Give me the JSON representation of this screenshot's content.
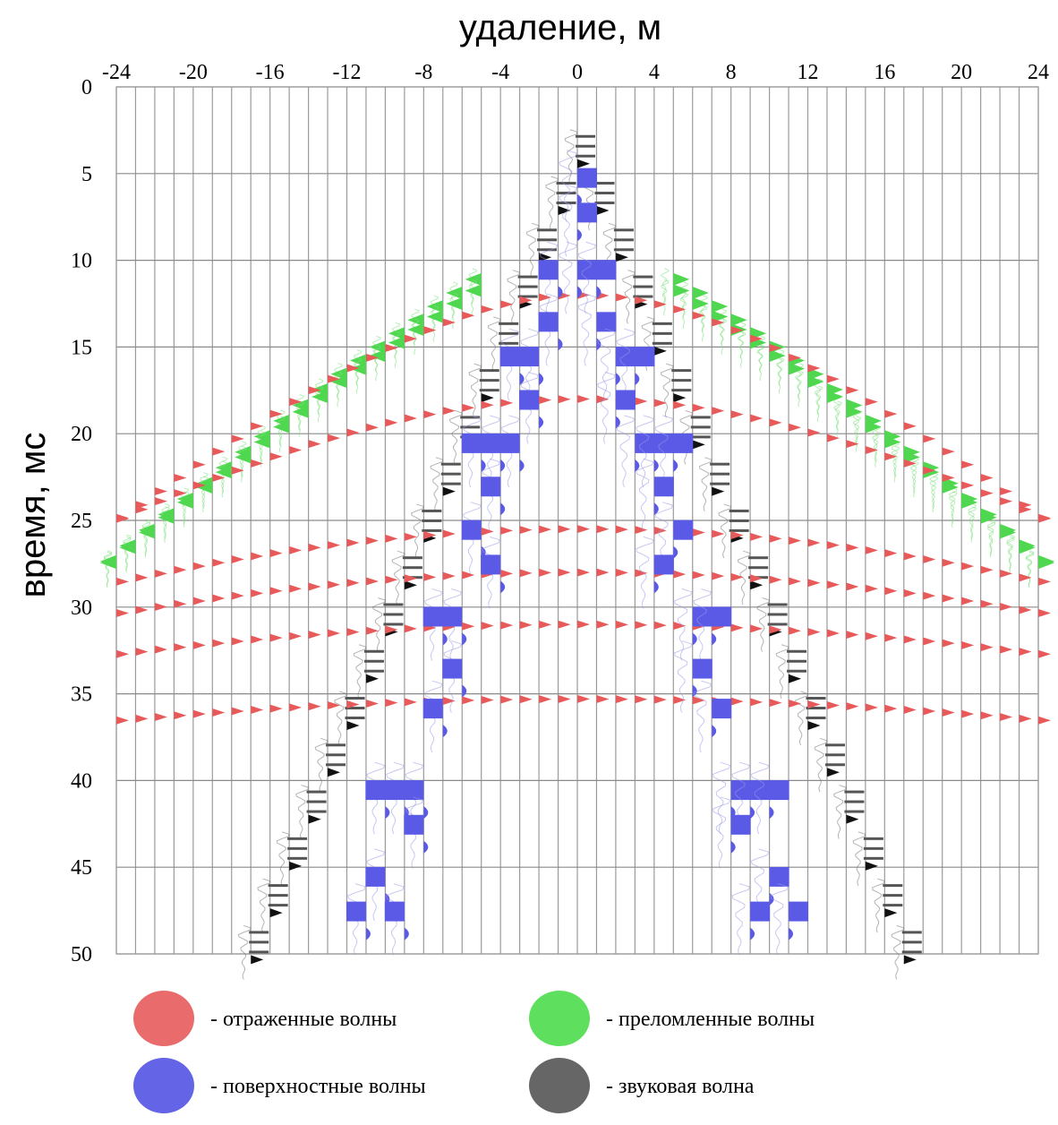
{
  "chart_data": {
    "type": "seismogram",
    "xlabel": "удаление, м",
    "ylabel": "время, мс",
    "xlim": [
      -24,
      24
    ],
    "ylim": [
      0,
      50
    ],
    "x_ticks": [
      -24,
      -20,
      -16,
      -12,
      -8,
      -4,
      0,
      4,
      8,
      12,
      16,
      20,
      24
    ],
    "y_ticks": [
      0,
      5,
      10,
      15,
      20,
      25,
      30,
      35,
      40,
      45,
      50
    ],
    "trace_offsets": [
      -24,
      -23,
      -22,
      -21,
      -20,
      -19,
      -18,
      -17,
      -16,
      -15,
      -14,
      -13,
      -12,
      -11,
      -10,
      -9,
      -8,
      -7,
      -6,
      -5,
      -4,
      -3,
      -2,
      -1,
      0,
      1,
      2,
      3,
      4,
      5,
      6,
      7,
      8,
      9,
      10,
      11,
      12,
      13,
      14,
      15,
      16,
      17,
      18,
      19,
      20,
      21,
      22,
      23,
      24
    ],
    "grid": true,
    "colors": {
      "reflected": "#e85a5a",
      "surface": "#5a5ae6",
      "refracted": "#4fd84f",
      "sound": "#555555"
    },
    "legend": [
      {
        "key": "reflected",
        "label": "- отраженные волны",
        "color": "#e96b6b"
      },
      {
        "key": "refracted",
        "label": "- преломленные волны",
        "color": "#5ee05e"
      },
      {
        "key": "surface",
        "label": "- поверхностные волны",
        "color": "#6464e6"
      },
      {
        "key": "sound",
        "label": "- звуковая волна",
        "color": "#666666"
      }
    ]
  }
}
